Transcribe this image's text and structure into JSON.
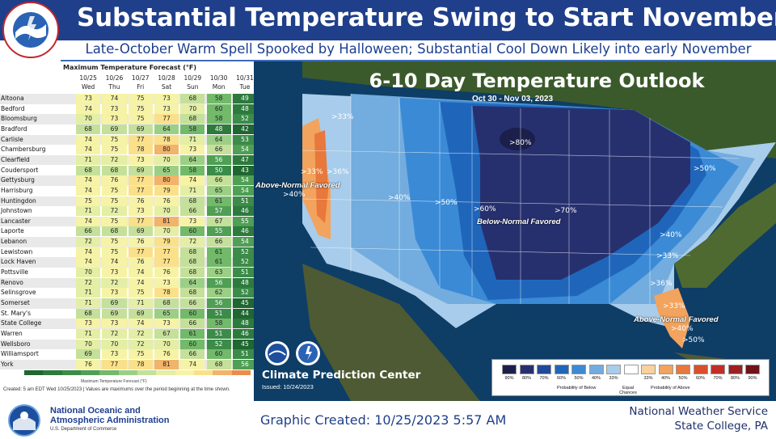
{
  "header": {
    "title": "Substantial Temperature Swing to Start November",
    "subtitle": "Late-October Warm Spell Spooked by Halloween; Substantial Cool Down Likely into early November",
    "logo_text": "NATIONAL WEATHER SERVICE"
  },
  "table": {
    "title": "Maximum Temperature Forecast (°F)",
    "days": [
      {
        "date": "10/25",
        "dow": "Wed"
      },
      {
        "date": "10/26",
        "dow": "Thu"
      },
      {
        "date": "10/27",
        "dow": "Fri"
      },
      {
        "date": "10/28",
        "dow": "Sat"
      },
      {
        "date": "10/29",
        "dow": "Sun"
      },
      {
        "date": "10/30",
        "dow": "Mon"
      },
      {
        "date": "10/31",
        "dow": "Tue"
      }
    ],
    "rows": [
      {
        "name": "Altoona",
        "values": [
          73,
          74,
          75,
          73,
          68,
          58,
          49
        ]
      },
      {
        "name": "Bedford",
        "values": [
          74,
          73,
          75,
          73,
          70,
          60,
          48
        ]
      },
      {
        "name": "Bloomsburg",
        "values": [
          70,
          73,
          75,
          77,
          68,
          58,
          52
        ]
      },
      {
        "name": "Bradford",
        "values": [
          68,
          69,
          69,
          64,
          58,
          48,
          42
        ]
      },
      {
        "name": "Carlisle",
        "values": [
          74,
          75,
          77,
          78,
          71,
          64,
          53
        ]
      },
      {
        "name": "Chambersburg",
        "values": [
          74,
          75,
          78,
          80,
          73,
          66,
          54
        ]
      },
      {
        "name": "Clearfield",
        "values": [
          71,
          72,
          73,
          70,
          64,
          56,
          47
        ]
      },
      {
        "name": "Coudersport",
        "values": [
          68,
          68,
          69,
          65,
          58,
          50,
          43
        ]
      },
      {
        "name": "Gettysburg",
        "values": [
          74,
          76,
          77,
          80,
          74,
          66,
          54
        ]
      },
      {
        "name": "Harrisburg",
        "values": [
          74,
          75,
          77,
          79,
          71,
          65,
          54
        ]
      },
      {
        "name": "Huntingdon",
        "values": [
          75,
          75,
          76,
          76,
          68,
          61,
          51
        ]
      },
      {
        "name": "Johnstown",
        "values": [
          71,
          72,
          73,
          70,
          66,
          57,
          46
        ]
      },
      {
        "name": "Lancaster",
        "values": [
          74,
          75,
          77,
          81,
          73,
          67,
          55
        ]
      },
      {
        "name": "Laporte",
        "values": [
          66,
          68,
          69,
          70,
          60,
          55,
          46
        ]
      },
      {
        "name": "Lebanon",
        "values": [
          72,
          75,
          76,
          79,
          72,
          66,
          54
        ]
      },
      {
        "name": "Lewistown",
        "values": [
          74,
          75,
          77,
          77,
          68,
          61,
          52
        ]
      },
      {
        "name": "Lock Haven",
        "values": [
          74,
          74,
          76,
          77,
          68,
          61,
          52
        ]
      },
      {
        "name": "Pottsville",
        "values": [
          70,
          73,
          74,
          76,
          68,
          63,
          51
        ]
      },
      {
        "name": "Renovo",
        "values": [
          72,
          72,
          74,
          73,
          64,
          56,
          48
        ]
      },
      {
        "name": "Selinsgrove",
        "values": [
          71,
          73,
          75,
          78,
          68,
          62,
          52
        ]
      },
      {
        "name": "Somerset",
        "values": [
          71,
          69,
          71,
          68,
          66,
          56,
          45
        ]
      },
      {
        "name": "St. Mary's",
        "values": [
          68,
          69,
          69,
          65,
          60,
          51,
          44
        ]
      },
      {
        "name": "State College",
        "values": [
          73,
          73,
          74,
          73,
          66,
          58,
          48
        ]
      },
      {
        "name": "Warren",
        "values": [
          71,
          72,
          72,
          67,
          61,
          51,
          46
        ]
      },
      {
        "name": "Wellsboro",
        "values": [
          70,
          70,
          72,
          70,
          60,
          52,
          45
        ]
      },
      {
        "name": "Williamsport",
        "values": [
          69,
          73,
          75,
          76,
          66,
          60,
          51
        ]
      },
      {
        "name": "York",
        "values": [
          76,
          77,
          78,
          81,
          74,
          68,
          56
        ]
      }
    ],
    "legend_caption": "Maximum Temperature Forecast (°F)",
    "note": "Created: 5 am EDT Wed 10/25/2023 | Values are maximums over the period beginning at the time shown."
  },
  "map": {
    "title": "6-10 Day Temperature Outlook",
    "dates": "Oct 30 - Nov 03, 2023",
    "labels": {
      "below_favored": "Below-Normal Favored",
      "above_west": "Above-Normal Favored",
      "above_fl": "Above-Normal Favored",
      "p80": ">80%",
      "p70": ">70%",
      "p60": ">60%",
      "p50a": ">50%",
      "p50b": ">50%",
      "p40a": ">40%",
      "p40b": ">40%",
      "p33a": ">33%",
      "p33b": ">33%",
      "p33c": ">33%",
      "p36a": ">36%",
      "p36b": ">36%",
      "p40w": ">40%",
      "p40fl": ">40%",
      "p50fl": ">50%",
      "p33fl": ">33%"
    },
    "cpc": "Climate Prediction Center",
    "issued": "Issued: 10/24/2023",
    "legend": {
      "labels": [
        "90%",
        "80%",
        "70%",
        "60%",
        "50%",
        "40%",
        "33%",
        "",
        "33%",
        "40%",
        "50%",
        "60%",
        "70%",
        "80%",
        "90%"
      ],
      "colors": [
        "#1b1f4a",
        "#27306f",
        "#21499b",
        "#1f66bb",
        "#3a8ad6",
        "#73acde",
        "#a8cceb",
        "#ffffff",
        "#f8d29c",
        "#f2a35d",
        "#e8783b",
        "#d94f2c",
        "#c22e26",
        "#9d1f22",
        "#6e1418"
      ],
      "below_caption": "Probability of Below",
      "equal_caption": "Equal Chances",
      "above_caption": "Probability of Above"
    }
  },
  "footer": {
    "noaa_name_1": "National Oceanic and",
    "noaa_name_2": "Atmospheric Administration",
    "noaa_dept": "U.S. Department of Commerce",
    "created": "Graphic Created: 10/25/2023 5:57 AM",
    "office_1": "National Weather Service",
    "office_2": "State College, PA"
  }
}
